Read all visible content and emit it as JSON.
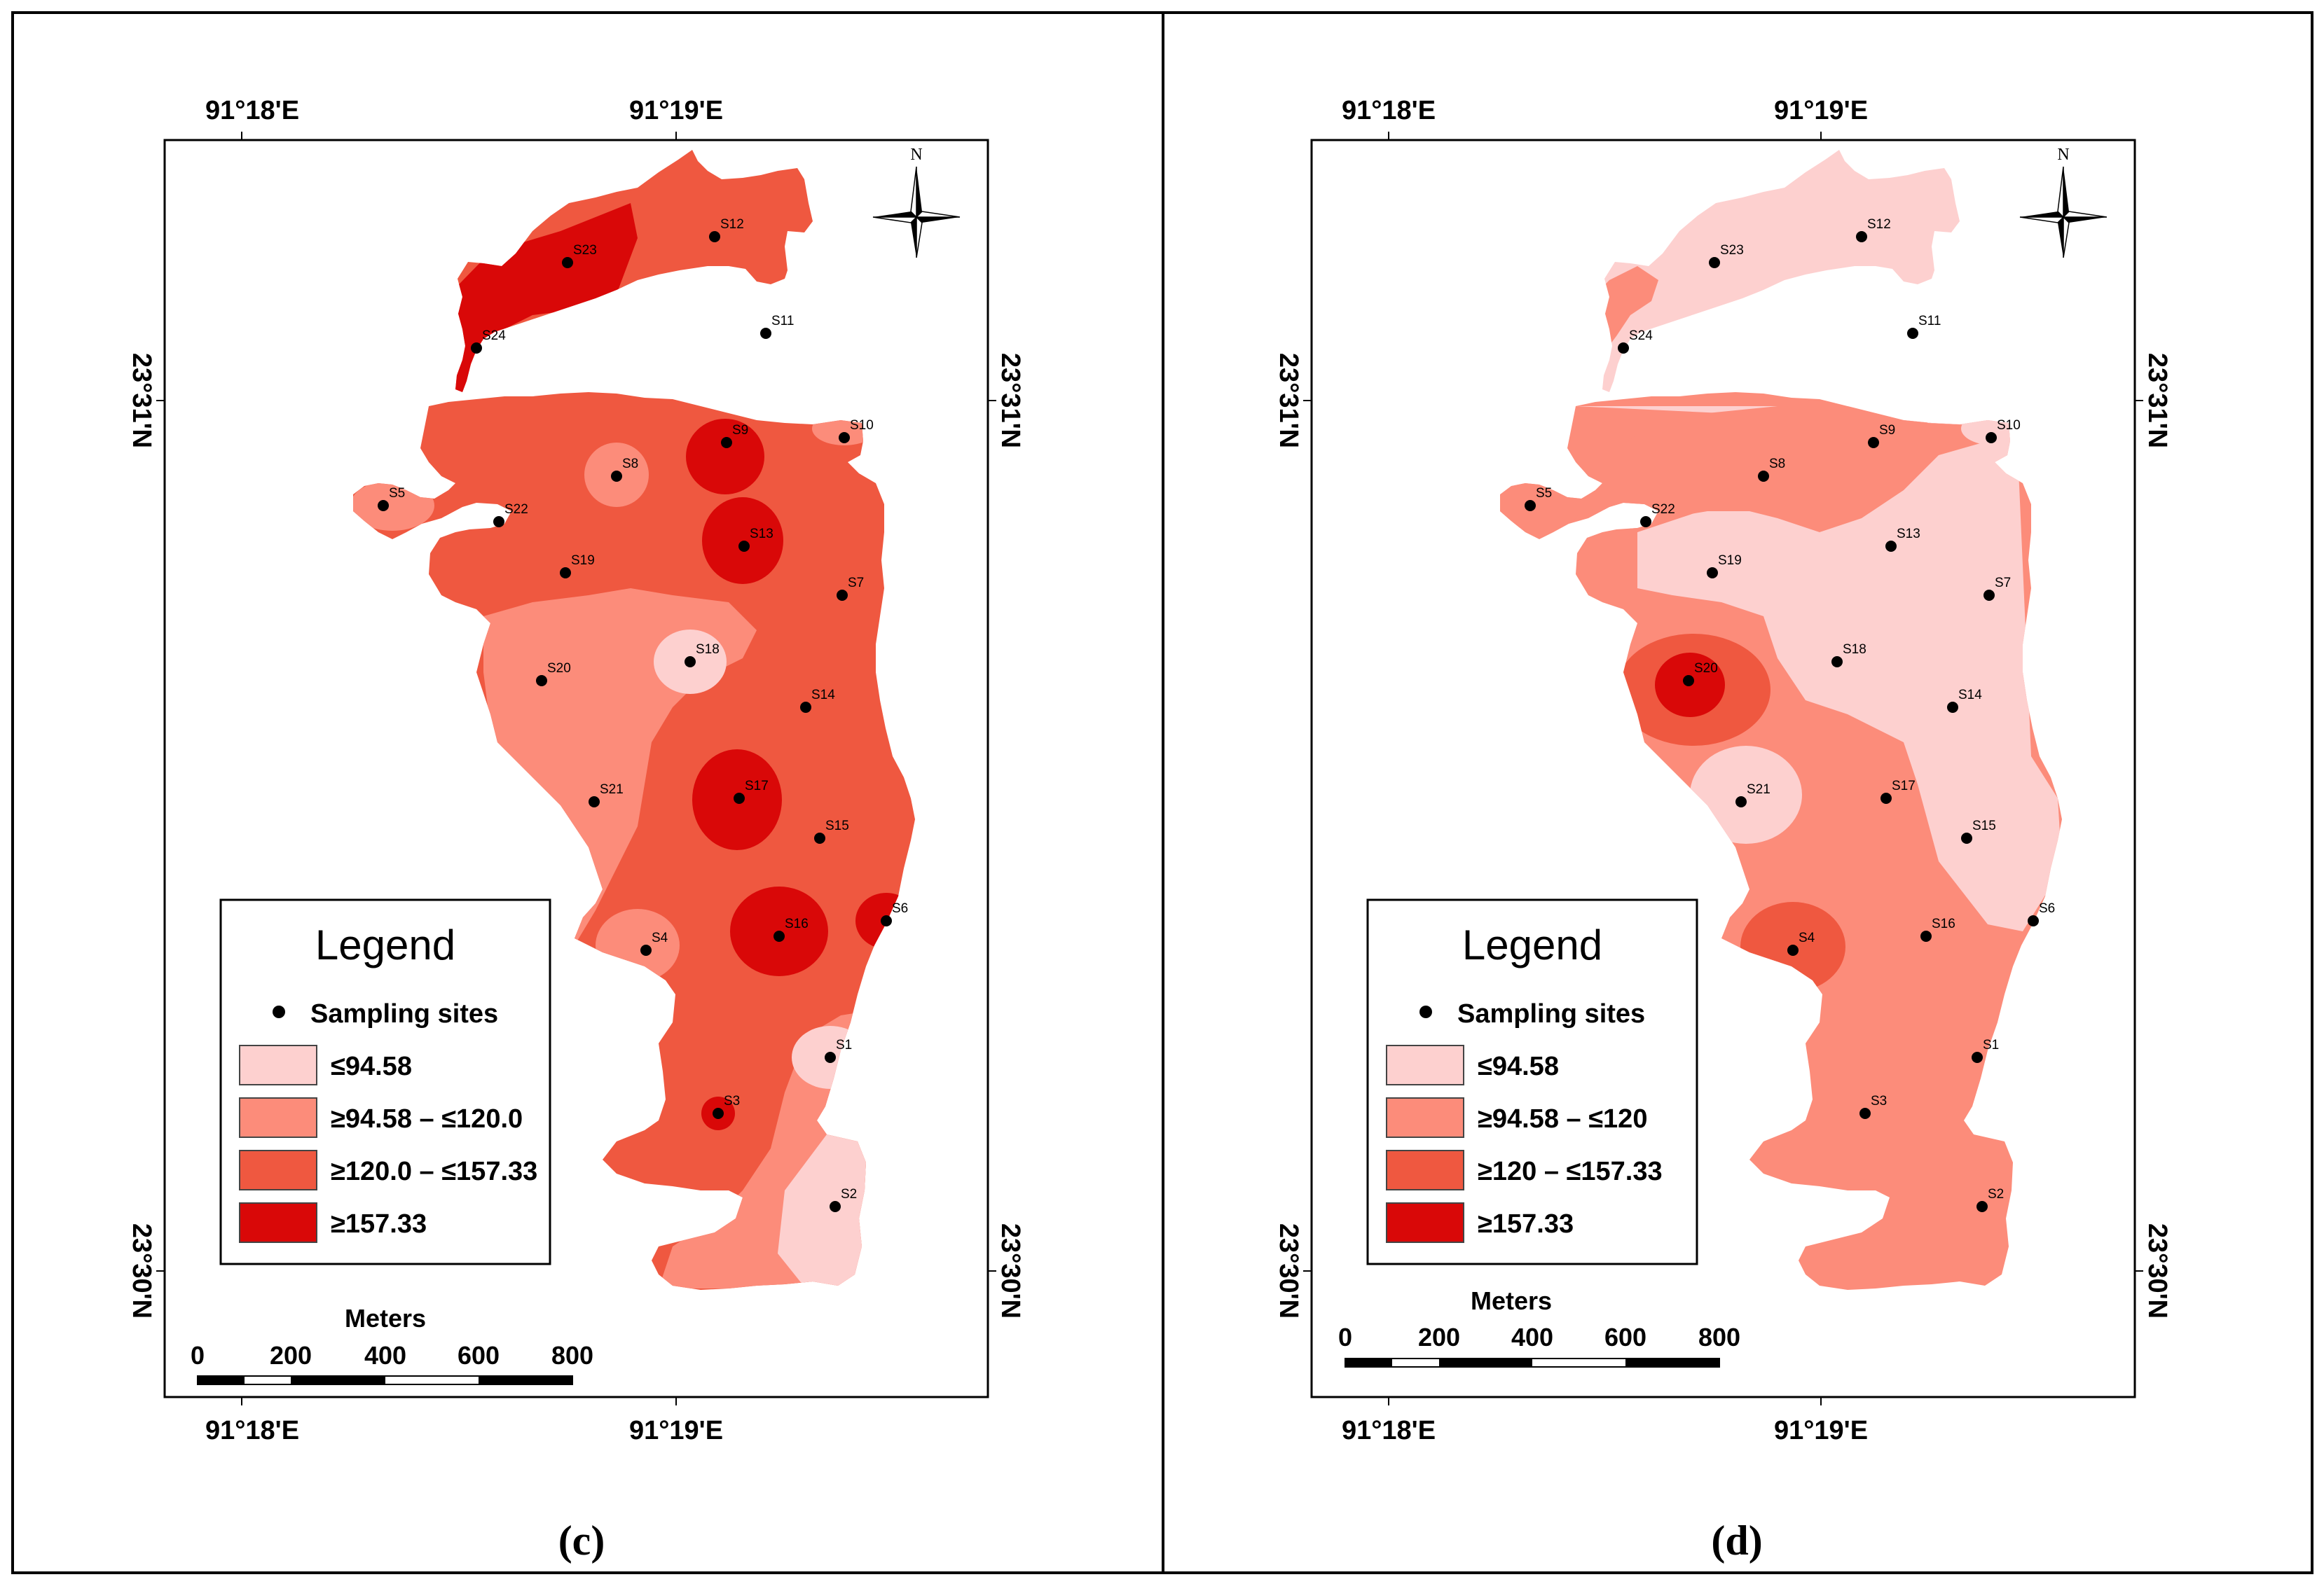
{
  "panels": [
    {
      "label_open": "(",
      "label_letter": "c",
      "label_close": ")",
      "lon_left": "91°18'E",
      "lon_right": "91°19'E",
      "lat_top": "23°31'N",
      "lat_bottom": "23°30'N",
      "north_letter": "N",
      "legend": {
        "title": "Legend",
        "sampling_sites": "Sampling sites",
        "classes": [
          {
            "label": "≤94.58",
            "color": "#fdd0cf"
          },
          {
            "label": "≥94.58 – ≤120.0",
            "color": "#fc8c7a"
          },
          {
            "label": "≥120.0 – ≤157.33",
            "color": "#ef5840"
          },
          {
            "label": "≥157.33",
            "color": "#d90808"
          }
        ]
      },
      "scale": {
        "title": "Meters",
        "ticks": [
          "0",
          "200",
          "400",
          "600",
          "800"
        ]
      },
      "sites": [
        "S1",
        "S2",
        "S3",
        "S4",
        "S5",
        "S6",
        "S7",
        "S8",
        "S9",
        "S10",
        "S11",
        "S12",
        "S13",
        "S14",
        "S15",
        "S16",
        "S17",
        "S18",
        "S19",
        "S20",
        "S21",
        "S22",
        "S23",
        "S24"
      ]
    },
    {
      "label_open": "(",
      "label_letter": "d",
      "label_close": ")",
      "lon_left": "91°18'E",
      "lon_right": "91°19'E",
      "lat_top": "23°31'N",
      "lat_bottom": "23°30'N",
      "north_letter": "N",
      "legend": {
        "title": "Legend",
        "sampling_sites": "Sampling sites",
        "classes": [
          {
            "label": "≤94.58",
            "color": "#fdd0cf"
          },
          {
            "label": "≥94.58 – ≤120",
            "color": "#fc8c7a"
          },
          {
            "label": "≥120 – ≤157.33",
            "color": "#ef5840"
          },
          {
            "label": "≥157.33",
            "color": "#d90808"
          }
        ]
      },
      "scale": {
        "title": "Meters",
        "ticks": [
          "0",
          "200",
          "400",
          "600",
          "800"
        ]
      },
      "sites": [
        "S1",
        "S2",
        "S3",
        "S4",
        "S5",
        "S6",
        "S7",
        "S8",
        "S9",
        "S10",
        "S11",
        "S12",
        "S13",
        "S14",
        "S15",
        "S16",
        "S17",
        "S18",
        "S19",
        "S20",
        "S21",
        "S22",
        "S23",
        "S24"
      ]
    }
  ]
}
